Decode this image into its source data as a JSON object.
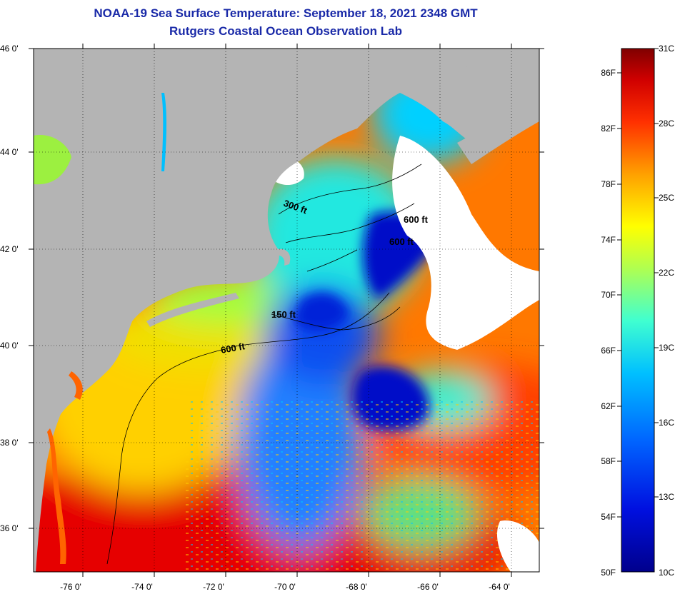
{
  "header": {
    "title": "NOAA-19 Sea Surface Temperature:  September 18, 2021 2348 GMT",
    "subtitle": "Rutgers Coastal Ocean Observation Lab"
  },
  "map": {
    "lat_labels": [
      "46 0'",
      "44 0'",
      "42 0'",
      "40 0'",
      "38 0'",
      "36 0'"
    ],
    "lon_labels": [
      "-76 0'",
      "-74 0'",
      "-72 0'",
      "-70 0'",
      "-68 0'",
      "-66 0'",
      "-64 0'"
    ],
    "contour_labels": [
      "150 ft",
      "600 ft",
      "300 ft",
      "600 ft",
      "600 ft"
    ],
    "colors": {
      "land": "#b4b4b4",
      "cloud": "#ffffff",
      "cold": "#00008c",
      "warm": "#e60000"
    }
  },
  "colorbar": {
    "fahrenheit_labels": [
      "86F",
      "82F",
      "78F",
      "74F",
      "70F",
      "66F",
      "62F",
      "58F",
      "54F",
      "50F"
    ],
    "celsius_labels": [
      "31C",
      "28C",
      "25C",
      "22C",
      "19C",
      "16C",
      "13C",
      "10C"
    ]
  }
}
